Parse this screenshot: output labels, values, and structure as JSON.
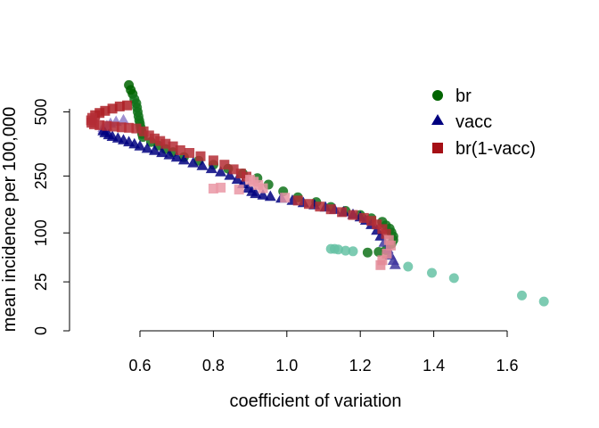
{
  "chart_data": {
    "type": "scatter",
    "title": "",
    "xlabel": "coefficient of variation",
    "ylabel": "mean incidence per 100,000",
    "xlim": [
      0.45,
      1.72
    ],
    "x_ticks": [
      0.6,
      0.8,
      1.0,
      1.2,
      1.4,
      1.6
    ],
    "x_tick_labels": [
      "0.6",
      "0.8",
      "1.0",
      "1.2",
      "1.4",
      "1.6"
    ],
    "y_scale": "sqrt",
    "ylim": [
      0,
      650
    ],
    "y_ticks": [
      0,
      25,
      100,
      250,
      500
    ],
    "y_tick_labels": [
      "0",
      "25",
      "100",
      "250",
      "500"
    ],
    "grid": false,
    "legend_position": "top-right",
    "series": [
      {
        "name": "br",
        "marker": "circle",
        "color": "#006400",
        "fade_color": "#66c2a5",
        "points": [
          [
            0.57,
            630
          ],
          [
            0.575,
            605
          ],
          [
            0.58,
            585
          ],
          [
            0.585,
            560
          ],
          [
            0.59,
            540
          ],
          [
            0.592,
            520
          ],
          [
            0.594,
            500
          ],
          [
            0.596,
            480
          ],
          [
            0.598,
            462
          ],
          [
            0.6,
            448
          ],
          [
            0.602,
            432
          ],
          [
            0.604,
            418
          ],
          [
            0.606,
            404
          ],
          [
            0.608,
            392
          ],
          [
            0.63,
            372
          ],
          [
            0.65,
            358
          ],
          [
            0.67,
            345
          ],
          [
            0.69,
            333
          ],
          [
            0.72,
            315
          ],
          [
            0.76,
            302
          ],
          [
            0.8,
            288
          ],
          [
            0.84,
            274
          ],
          [
            0.88,
            258
          ],
          [
            0.92,
            243
          ],
          [
            0.95,
            223
          ],
          [
            0.99,
            203
          ],
          [
            1.03,
            186
          ],
          [
            1.08,
            173
          ],
          [
            1.12,
            160
          ],
          [
            1.16,
            150
          ],
          [
            1.2,
            140
          ],
          [
            1.23,
            132
          ],
          [
            1.26,
            124
          ],
          [
            1.27,
            116
          ],
          [
            1.28,
            109
          ],
          [
            1.285,
            101
          ],
          [
            1.29,
            93
          ],
          [
            1.29,
            86
          ],
          [
            1.285,
            79
          ],
          [
            1.27,
            68
          ],
          [
            1.25,
            65
          ],
          [
            1.22,
            64
          ],
          [
            1.18,
            66
          ],
          [
            1.16,
            67
          ],
          [
            1.14,
            69
          ],
          [
            1.13,
            70
          ],
          [
            1.12,
            70
          ],
          [
            1.33,
            43
          ],
          [
            1.395,
            35
          ],
          [
            1.455,
            29
          ],
          [
            1.64,
            13
          ],
          [
            1.7,
            9
          ]
        ]
      },
      {
        "name": "vacc",
        "marker": "triangle",
        "color": "#00007f",
        "fade_color": "#b39ddb",
        "points": [
          [
            0.555,
            465
          ],
          [
            0.535,
            458
          ],
          [
            0.52,
            450
          ],
          [
            0.51,
            440
          ],
          [
            0.5,
            432
          ],
          [
            0.5,
            424
          ],
          [
            0.5,
            418
          ],
          [
            0.505,
            410
          ],
          [
            0.515,
            402
          ],
          [
            0.525,
            395
          ],
          [
            0.54,
            388
          ],
          [
            0.555,
            381
          ],
          [
            0.57,
            373
          ],
          [
            0.585,
            365
          ],
          [
            0.6,
            357
          ],
          [
            0.62,
            348
          ],
          [
            0.64,
            340
          ],
          [
            0.66,
            332
          ],
          [
            0.68,
            324
          ],
          [
            0.7,
            315
          ],
          [
            0.72,
            305
          ],
          [
            0.745,
            295
          ],
          [
            0.77,
            285
          ],
          [
            0.795,
            275
          ],
          [
            0.82,
            264
          ],
          [
            0.845,
            253
          ],
          [
            0.865,
            240
          ],
          [
            0.88,
            226
          ],
          [
            0.895,
            213
          ],
          [
            0.905,
            203
          ],
          [
            0.915,
            197
          ],
          [
            0.935,
            193
          ],
          [
            0.955,
            189
          ],
          [
            0.985,
            184
          ],
          [
            1.015,
            178
          ],
          [
            1.045,
            172
          ],
          [
            1.075,
            166
          ],
          [
            1.105,
            160
          ],
          [
            1.13,
            154
          ],
          [
            1.155,
            148
          ],
          [
            1.18,
            142
          ],
          [
            1.2,
            136
          ],
          [
            1.215,
            128
          ],
          [
            1.23,
            118
          ],
          [
            1.245,
            106
          ],
          [
            1.255,
            94
          ],
          [
            1.265,
            82
          ],
          [
            1.275,
            70
          ],
          [
            1.282,
            60
          ],
          [
            1.29,
            52
          ],
          [
            1.295,
            46
          ]
        ]
      },
      {
        "name": "br(1-vacc)",
        "marker": "square",
        "color": "#a50f15",
        "fade_color": "#f2a7b6",
        "points": [
          [
            0.565,
            530
          ],
          [
            0.545,
            525
          ],
          [
            0.525,
            515
          ],
          [
            0.505,
            505
          ],
          [
            0.49,
            495
          ],
          [
            0.478,
            485
          ],
          [
            0.47,
            473
          ],
          [
            0.467,
            462
          ],
          [
            0.468,
            452
          ],
          [
            0.475,
            445
          ],
          [
            0.49,
            441
          ],
          [
            0.51,
            438
          ],
          [
            0.53,
            435
          ],
          [
            0.55,
            432
          ],
          [
            0.57,
            430
          ],
          [
            0.59,
            427
          ],
          [
            0.61,
            415
          ],
          [
            0.625,
            398
          ],
          [
            0.64,
            386
          ],
          [
            0.655,
            376
          ],
          [
            0.67,
            365
          ],
          [
            0.69,
            355
          ],
          [
            0.71,
            340
          ],
          [
            0.735,
            330
          ],
          [
            0.765,
            318
          ],
          [
            0.8,
            303
          ],
          [
            0.83,
            288
          ],
          [
            0.855,
            272
          ],
          [
            0.875,
            258
          ],
          [
            0.89,
            248
          ],
          [
            0.9,
            238
          ],
          [
            0.91,
            232
          ],
          [
            0.922,
            222
          ],
          [
            0.935,
            212
          ],
          [
            0.82,
            214
          ],
          [
            0.8,
            211
          ],
          [
            0.87,
            208
          ],
          [
            0.995,
            185
          ],
          [
            1.03,
            177
          ],
          [
            1.06,
            168
          ],
          [
            1.09,
            161
          ],
          [
            1.12,
            154
          ],
          [
            1.15,
            147
          ],
          [
            1.18,
            140
          ],
          [
            1.21,
            133
          ],
          [
            1.23,
            126
          ],
          [
            1.245,
            118
          ],
          [
            1.26,
            108
          ],
          [
            1.27,
            98
          ],
          [
            1.278,
            86
          ],
          [
            1.283,
            76
          ],
          [
            1.272,
            62
          ],
          [
            1.26,
            52
          ],
          [
            1.255,
            45
          ]
        ]
      }
    ]
  }
}
